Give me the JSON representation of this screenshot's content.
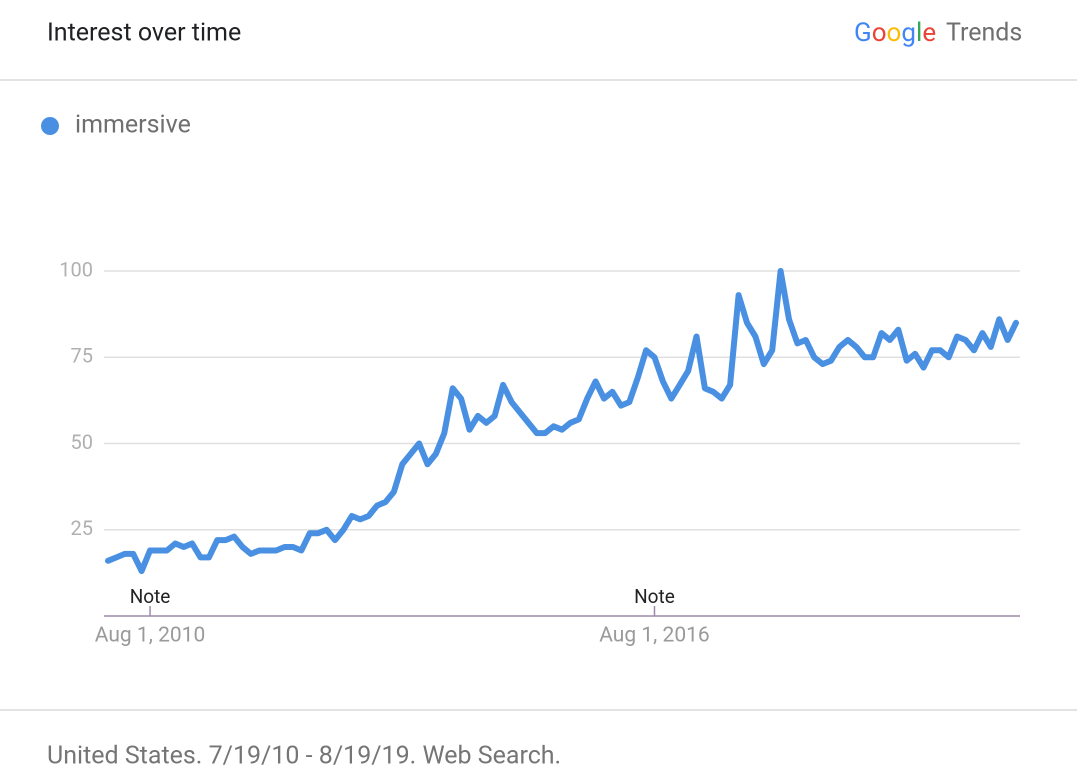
{
  "header": {
    "title": "Interest over time",
    "logo_google": "Google",
    "logo_trends": "Trends"
  },
  "chart_data": {
    "type": "line",
    "categories": [
      null,
      null,
      null,
      null,
      null,
      "Aug 1, 2010",
      null,
      null,
      null,
      null,
      null,
      null,
      null,
      null,
      null,
      null,
      null,
      null,
      null,
      null,
      null,
      null,
      null,
      null,
      null,
      null,
      null,
      null,
      null,
      null,
      null,
      null,
      null,
      null,
      null,
      null,
      null,
      null,
      null,
      null,
      null,
      null,
      null,
      null,
      null,
      null,
      null,
      null,
      null,
      null,
      null,
      null,
      null,
      null,
      null,
      null,
      null,
      null,
      null,
      null,
      null,
      null,
      null,
      null,
      null,
      "Aug 1, 2016",
      null,
      null,
      null,
      null,
      null,
      null,
      null,
      null,
      null,
      null,
      null,
      null,
      null,
      null,
      null,
      null,
      null,
      null,
      null,
      null,
      null,
      null,
      null,
      null,
      null,
      null,
      null,
      null,
      null,
      null,
      null,
      null,
      null,
      null,
      null,
      null,
      null,
      null,
      null,
      null,
      null,
      null,
      null
    ],
    "series": [
      {
        "name": "immersive",
        "color": "#4a90e2",
        "values": [
          16,
          17,
          18,
          18,
          13,
          19,
          19,
          19,
          21,
          20,
          21,
          17,
          17,
          22,
          22,
          23,
          20,
          18,
          19,
          19,
          19,
          20,
          20,
          19,
          24,
          24,
          25,
          22,
          25,
          29,
          28,
          29,
          32,
          33,
          36,
          44,
          47,
          50,
          44,
          47,
          53,
          66,
          63,
          54,
          58,
          56,
          58,
          67,
          62,
          59,
          56,
          53,
          53,
          55,
          54,
          56,
          57,
          63,
          68,
          63,
          65,
          61,
          62,
          69,
          77,
          75,
          68,
          63,
          67,
          71,
          81,
          66,
          65,
          63,
          67,
          93,
          85,
          81,
          73,
          77,
          100,
          86,
          79,
          80,
          75,
          73,
          74,
          78,
          80,
          78,
          75,
          75,
          82,
          80,
          83,
          74,
          76,
          72,
          77,
          77,
          75,
          81,
          80,
          77,
          82,
          78,
          86,
          80,
          85
        ]
      }
    ],
    "annotations": [
      "Note",
      "Note"
    ],
    "ylim": [
      0,
      100
    ],
    "yticks": [
      25,
      50,
      75,
      100
    ],
    "grid": true
  },
  "footer": {
    "text": "United States. 7/19/10 - 8/19/19. Web Search."
  }
}
